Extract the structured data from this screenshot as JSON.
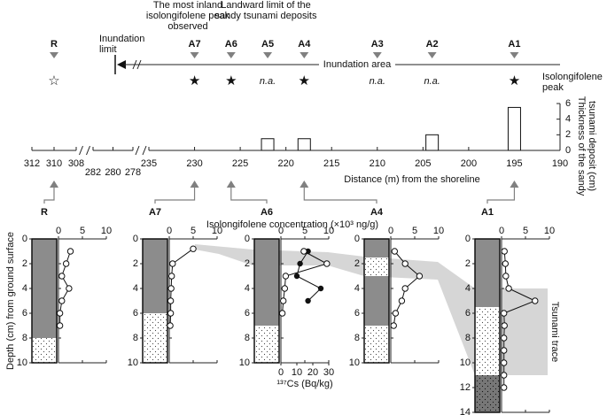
{
  "chart_data": {
    "type": "transect-cores",
    "annotations": {
      "inundation_limit": [
        "Inundation",
        "limit"
      ],
      "most_inland_peak": [
        "The most inland",
        "isolongifolene peak",
        "observed"
      ],
      "landward_limit": [
        "Landward limit of the",
        "sandy tsunami deposits"
      ],
      "inundation_area": "Inundation area",
      "peak_legend": [
        "Isolongifolene",
        "peak"
      ],
      "tsunami_trace": "Tsunami trace"
    },
    "sites": {
      "names": [
        "R",
        "A7",
        "A6",
        "A5",
        "A4",
        "A3",
        "A2",
        "A1"
      ],
      "distances": [
        310,
        230,
        226,
        222,
        218,
        210,
        204,
        195
      ],
      "peak_markers": [
        "☆",
        "★",
        "★",
        "n.a.",
        "★",
        "n.a.",
        "n.a.",
        "★"
      ]
    },
    "thickness": {
      "x": [
        222,
        218,
        204,
        195
      ],
      "values": [
        1.5,
        1.5,
        2,
        5.5
      ]
    },
    "ylim": [
      0,
      6
    ],
    "yticks": [
      0,
      2,
      4,
      6
    ],
    "ylabel": [
      "Thickness of the sandy",
      "tsunami deposit (cm)"
    ],
    "xlim_segments": [
      [
        312,
        308
      ],
      [
        282,
        278
      ],
      [
        235,
        190
      ]
    ],
    "xticks": [
      312,
      310,
      308,
      282,
      280,
      278,
      235,
      230,
      225,
      220,
      215,
      210,
      205,
      200,
      195,
      190
    ],
    "xlabel": "Distance (m) from the shoreline",
    "conc_label": "Isolongifolene concentration (×10³ ng/g)",
    "conc_xlim": [
      0,
      10
    ],
    "conc_xticks": [
      0,
      5,
      10
    ],
    "depth_label": "Depth (cm) from ground surface",
    "cs_label": "¹³⁷Cs (Bq/kg)",
    "cs_xlim": [
      0,
      30
    ],
    "cs_xticks": [
      0,
      10,
      20,
      30
    ],
    "cores": [
      {
        "name": "R",
        "ylim": [
          0,
          10
        ],
        "yticks": [
          0,
          2,
          4,
          6,
          8,
          10
        ],
        "layers": [
          {
            "top": 0,
            "bottom": 8,
            "type": "mud"
          },
          {
            "top": 8,
            "bottom": 10,
            "type": "sand"
          }
        ],
        "depth": [
          1,
          2,
          3,
          4,
          5,
          6,
          7
        ],
        "isolongifolene": [
          2.5,
          1.6,
          0.7,
          2.2,
          0.7,
          0.3,
          0.3
        ]
      },
      {
        "name": "A7",
        "ylim": [
          0,
          10
        ],
        "yticks": [
          0,
          2,
          4,
          6,
          8,
          10
        ],
        "layers": [
          {
            "top": 0,
            "bottom": 6,
            "type": "mud"
          },
          {
            "top": 6,
            "bottom": 10,
            "type": "sand"
          }
        ],
        "depth": [
          0.8,
          2,
          3,
          4,
          5,
          6,
          7
        ],
        "isolongifolene": [
          5,
          0.7,
          0.5,
          0.4,
          0.3,
          0.3,
          0.2
        ]
      },
      {
        "name": "A6",
        "ylim": [
          0,
          10
        ],
        "yticks": [
          0,
          2,
          4,
          6,
          8,
          10
        ],
        "layers": [
          {
            "top": 0,
            "bottom": 7,
            "type": "mud"
          },
          {
            "top": 7,
            "bottom": 10,
            "type": "sand"
          }
        ],
        "depth": [
          1,
          2,
          3,
          4,
          5,
          6
        ],
        "isolongifolene": [
          4.8,
          9.6,
          1,
          0.8,
          0.5,
          0.3
        ],
        "cs137": {
          "depth": [
            1,
            2,
            3,
            4,
            5
          ],
          "values": [
            17,
            12,
            10,
            25,
            17
          ]
        }
      },
      {
        "name": "A4",
        "ylim": [
          0,
          10
        ],
        "yticks": [
          0,
          2,
          4,
          6,
          8,
          10
        ],
        "layers": [
          {
            "top": 0,
            "bottom": 1.5,
            "type": "mud"
          },
          {
            "top": 1.5,
            "bottom": 3,
            "type": "sand"
          },
          {
            "top": 3,
            "bottom": 7,
            "type": "mud"
          },
          {
            "top": 7,
            "bottom": 10,
            "type": "sand"
          }
        ],
        "depth": [
          1,
          2,
          3,
          4,
          5,
          6,
          7
        ],
        "isolongifolene": [
          0.8,
          3,
          6,
          3,
          2.3,
          1,
          0.6
        ]
      },
      {
        "name": "A1",
        "ylim": [
          0,
          14
        ],
        "yticks": [
          0,
          2,
          4,
          6,
          8,
          10,
          12,
          14
        ],
        "layers": [
          {
            "top": 0,
            "bottom": 5.5,
            "type": "mud"
          },
          {
            "top": 5.5,
            "bottom": 11,
            "type": "sand"
          },
          {
            "top": 11,
            "bottom": 14,
            "type": "muddy-sand"
          }
        ],
        "depth": [
          1,
          2,
          3,
          4,
          5,
          6,
          7,
          8,
          9,
          10,
          11,
          12
        ],
        "isolongifolene": [
          0.6,
          0.8,
          0.9,
          1.5,
          7,
          0.5,
          0.6,
          0.5,
          0.5,
          0.5,
          0.5,
          0.5
        ]
      }
    ]
  }
}
